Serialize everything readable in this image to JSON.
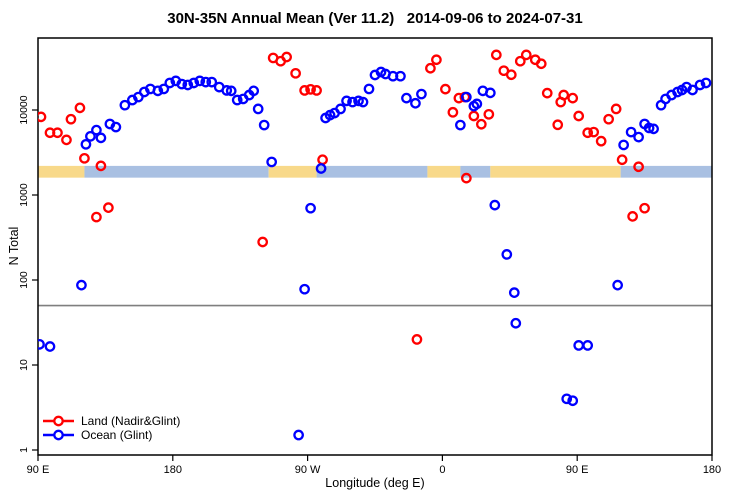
{
  "title": "30N-35N Annual Mean (Ver 11.2)   2014-09-06 to 2024-07-31",
  "colors": {
    "land_series": "#ff0000",
    "ocean_series": "#0000ff",
    "band_land": "#f8d98a",
    "band_ocean": "#a9c0e2",
    "reference_line": "#7f7f7f",
    "frame": "#000000"
  },
  "chart_data": {
    "type": "scatter",
    "title": "30N-35N Annual Mean (Ver 11.2)   2014-09-06 to 2024-07-31",
    "xlabel": "Longitude (deg E)",
    "ylabel": "N Total",
    "x_axis": {
      "note": "longitude unwrapped eastward starting at 90E",
      "range": [
        90,
        540
      ],
      "ticks": [
        90,
        180,
        270,
        360,
        450,
        540
      ],
      "tick_labels": [
        "90 E",
        "180",
        "90 W",
        "0",
        "90 E",
        "180"
      ]
    },
    "y_axis": {
      "scale": "log",
      "range": [
        1,
        70000
      ],
      "ticks": [
        1,
        10,
        100,
        1000,
        10000
      ],
      "tick_labels": [
        "1",
        "10",
        "100",
        "1000",
        "10000"
      ]
    },
    "grid": false,
    "reference_line": {
      "y": 50
    },
    "surface_band": {
      "value_top": 2200,
      "value_bottom": 1600,
      "segments": [
        {
          "from": 90,
          "to": 121,
          "type": "land"
        },
        {
          "from": 121,
          "to": 244,
          "type": "ocean"
        },
        {
          "from": 244,
          "to": 276,
          "type": "land"
        },
        {
          "from": 276,
          "to": 350,
          "type": "ocean"
        },
        {
          "from": 350,
          "to": 372,
          "type": "land"
        },
        {
          "from": 372,
          "to": 392,
          "type": "ocean"
        },
        {
          "from": 392,
          "to": 479,
          "type": "land"
        },
        {
          "from": 479,
          "to": 540,
          "type": "ocean"
        }
      ]
    },
    "legend": {
      "position": "bottom-left"
    },
    "series": [
      {
        "name": "Land (Nadir&Glint)",
        "color": "#ff0000",
        "points": [
          [
            92,
            8300
          ],
          [
            98,
            5400
          ],
          [
            103,
            5400
          ],
          [
            109,
            4450
          ],
          [
            112,
            7800
          ],
          [
            118,
            10600
          ],
          [
            121,
            2700
          ],
          [
            129,
            550
          ],
          [
            132,
            2200
          ],
          [
            137,
            710
          ],
          [
            240,
            280
          ],
          [
            247,
            41000
          ],
          [
            252,
            37500
          ],
          [
            256,
            42000
          ],
          [
            262,
            27000
          ],
          [
            268,
            17000
          ],
          [
            272,
            17500
          ],
          [
            276,
            17000
          ],
          [
            280,
            2600
          ],
          [
            343,
            20
          ],
          [
            352,
            31000
          ],
          [
            356,
            39000
          ],
          [
            362,
            17600
          ],
          [
            367,
            9400
          ],
          [
            371,
            13800
          ],
          [
            375,
            14200
          ],
          [
            376,
            1580
          ],
          [
            381,
            8500
          ],
          [
            386,
            6800
          ],
          [
            391,
            8900
          ],
          [
            396,
            44500
          ],
          [
            401,
            29000
          ],
          [
            406,
            26000
          ],
          [
            412,
            37500
          ],
          [
            416,
            44500
          ],
          [
            422,
            39000
          ],
          [
            426,
            35000
          ],
          [
            430,
            15800
          ],
          [
            437,
            6700
          ],
          [
            439,
            12400
          ],
          [
            441,
            15000
          ],
          [
            447,
            13800
          ],
          [
            451,
            8500
          ],
          [
            457,
            5400
          ],
          [
            461,
            5500
          ],
          [
            466,
            4300
          ],
          [
            471,
            7800
          ],
          [
            476,
            10300
          ],
          [
            480,
            2600
          ],
          [
            487,
            560
          ],
          [
            491,
            2150
          ],
          [
            495,
            700
          ]
        ]
      },
      {
        "name": "Ocean (Glint)",
        "color": "#0000ff",
        "points": [
          [
            91,
            17.5
          ],
          [
            98,
            16.5
          ],
          [
            119,
            87
          ],
          [
            122,
            3950
          ],
          [
            125,
            4900
          ],
          [
            129,
            5800
          ],
          [
            132,
            4700
          ],
          [
            138,
            6850
          ],
          [
            142,
            6300
          ],
          [
            148,
            11400
          ],
          [
            153,
            13100
          ],
          [
            157,
            14200
          ],
          [
            161,
            16300
          ],
          [
            165,
            17700
          ],
          [
            170,
            16800
          ],
          [
            174,
            17700
          ],
          [
            178,
            20800
          ],
          [
            182,
            22000
          ],
          [
            186,
            20200
          ],
          [
            190,
            19700
          ],
          [
            194,
            20800
          ],
          [
            198,
            22000
          ],
          [
            202,
            21300
          ],
          [
            206,
            21300
          ],
          [
            211,
            18600
          ],
          [
            216,
            17000
          ],
          [
            219,
            16800
          ],
          [
            223,
            13100
          ],
          [
            227,
            13500
          ],
          [
            231,
            15000
          ],
          [
            234,
            16800
          ],
          [
            237,
            10300
          ],
          [
            241,
            6650
          ],
          [
            246,
            2450
          ],
          [
            264,
            1.5
          ],
          [
            268,
            78
          ],
          [
            272,
            700
          ],
          [
            279,
            2050
          ],
          [
            282,
            8050
          ],
          [
            285,
            8700
          ],
          [
            288,
            9200
          ],
          [
            292,
            10300
          ],
          [
            296,
            12800
          ],
          [
            300,
            12400
          ],
          [
            304,
            12800
          ],
          [
            307,
            12400
          ],
          [
            311,
            17700
          ],
          [
            315,
            25800
          ],
          [
            319,
            28000
          ],
          [
            322,
            26500
          ],
          [
            327,
            25000
          ],
          [
            332,
            25000
          ],
          [
            336,
            13800
          ],
          [
            342,
            12000
          ],
          [
            346,
            15400
          ],
          [
            372,
            6650
          ],
          [
            376,
            14200
          ],
          [
            381,
            11100
          ],
          [
            383,
            11800
          ],
          [
            387,
            16800
          ],
          [
            392,
            15900
          ],
          [
            395,
            760
          ],
          [
            403,
            200
          ],
          [
            408,
            71
          ],
          [
            409,
            31
          ],
          [
            443,
            4
          ],
          [
            447,
            3.8
          ],
          [
            451,
            17
          ],
          [
            457,
            17
          ],
          [
            477,
            87
          ],
          [
            481,
            3880
          ],
          [
            486,
            5500
          ],
          [
            491,
            4800
          ],
          [
            495,
            6850
          ],
          [
            498,
            6150
          ],
          [
            501,
            6000
          ],
          [
            506,
            11400
          ],
          [
            509,
            13500
          ],
          [
            513,
            15000
          ],
          [
            517,
            16300
          ],
          [
            520,
            17200
          ],
          [
            523,
            18600
          ],
          [
            527,
            17200
          ],
          [
            532,
            19700
          ],
          [
            536,
            20800
          ]
        ]
      }
    ]
  }
}
